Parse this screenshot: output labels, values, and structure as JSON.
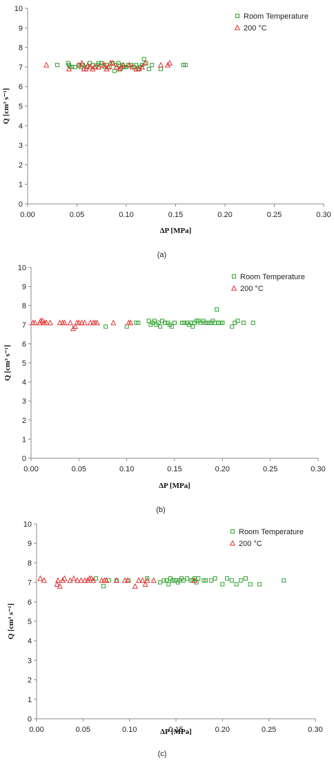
{
  "chart_data": [
    {
      "type": "scatter",
      "caption": "(a)",
      "xlabel": "ΔP [MPa]",
      "ylabel": "Q [cm³ s⁻¹]",
      "xlim": [
        0,
        0.3
      ],
      "ylim": [
        0,
        10
      ],
      "x_ticks": [
        "0.00",
        "0.05",
        "0.10",
        "0.15",
        "0.20",
        "0.25",
        "0.30"
      ],
      "y_ticks": [
        "0",
        "1",
        "2",
        "3",
        "4",
        "5",
        "6",
        "7",
        "8",
        "9",
        "10"
      ],
      "grid": false,
      "legend_position": "top-right",
      "series": [
        {
          "name": "Room Temperature",
          "marker": "square",
          "color": "#2e9e2e",
          "points": [
            [
              0.03,
              7.1
            ],
            [
              0.041,
              7.2
            ],
            [
              0.042,
              7.1
            ],
            [
              0.043,
              7.0
            ],
            [
              0.045,
              7.0
            ],
            [
              0.048,
              7.0
            ],
            [
              0.052,
              7.1
            ],
            [
              0.054,
              7.0
            ],
            [
              0.056,
              7.1
            ],
            [
              0.06,
              7.0
            ],
            [
              0.063,
              7.2
            ],
            [
              0.066,
              7.1
            ],
            [
              0.069,
              7.0
            ],
            [
              0.071,
              7.1
            ],
            [
              0.072,
              7.2
            ],
            [
              0.075,
              7.2
            ],
            [
              0.078,
              7.0
            ],
            [
              0.08,
              7.1
            ],
            [
              0.083,
              7.0
            ],
            [
              0.086,
              7.2
            ],
            [
              0.088,
              6.8
            ],
            [
              0.09,
              7.1
            ],
            [
              0.092,
              7.2
            ],
            [
              0.094,
              6.9
            ],
            [
              0.096,
              7.1
            ],
            [
              0.098,
              7.0
            ],
            [
              0.1,
              7.0
            ],
            [
              0.102,
              7.1
            ],
            [
              0.105,
              7.1
            ],
            [
              0.108,
              7.0
            ],
            [
              0.11,
              7.1
            ],
            [
              0.112,
              6.9
            ],
            [
              0.114,
              7.0
            ],
            [
              0.116,
              7.1
            ],
            [
              0.118,
              7.4
            ],
            [
              0.12,
              7.2
            ],
            [
              0.123,
              6.9
            ],
            [
              0.126,
              7.1
            ],
            [
              0.135,
              6.9
            ],
            [
              0.158,
              7.1
            ],
            [
              0.16,
              7.1
            ]
          ]
        },
        {
          "name": "200 °C",
          "marker": "triangle",
          "color": "#e03030",
          "points": [
            [
              0.019,
              7.1
            ],
            [
              0.042,
              6.9
            ],
            [
              0.052,
              7.1
            ],
            [
              0.055,
              7.2
            ],
            [
              0.057,
              6.9
            ],
            [
              0.059,
              6.9
            ],
            [
              0.061,
              7.1
            ],
            [
              0.063,
              7.0
            ],
            [
              0.066,
              6.9
            ],
            [
              0.068,
              7.0
            ],
            [
              0.072,
              7.0
            ],
            [
              0.076,
              7.1
            ],
            [
              0.078,
              7.1
            ],
            [
              0.08,
              6.9
            ],
            [
              0.082,
              7.0
            ],
            [
              0.084,
              7.2
            ],
            [
              0.086,
              7.2
            ],
            [
              0.09,
              7.0
            ],
            [
              0.093,
              6.9
            ],
            [
              0.095,
              7.0
            ],
            [
              0.097,
              7.1
            ],
            [
              0.103,
              7.1
            ],
            [
              0.106,
              7.0
            ],
            [
              0.11,
              6.9
            ],
            [
              0.113,
              6.9
            ],
            [
              0.116,
              7.0
            ],
            [
              0.119,
              7.2
            ],
            [
              0.135,
              7.1
            ],
            [
              0.142,
              7.1
            ],
            [
              0.144,
              7.2
            ]
          ]
        }
      ]
    },
    {
      "type": "scatter",
      "caption": "(b)",
      "xlabel": "ΔP [MPa]",
      "ylabel": "Q [cm³ s⁻¹]",
      "xlim": [
        0,
        0.3
      ],
      "ylim": [
        0,
        10
      ],
      "x_ticks": [
        "0.00",
        "0.05",
        "0.10",
        "0.15",
        "0.20",
        "0.25",
        "0.30"
      ],
      "y_ticks": [
        "0",
        "1",
        "2",
        "3",
        "4",
        "5",
        "6",
        "7",
        "8",
        "9",
        "10"
      ],
      "grid": false,
      "legend_position": "top-right",
      "series": [
        {
          "name": "Room Temperature",
          "marker": "square",
          "color": "#2e9e2e",
          "points": [
            [
              0.078,
              6.9
            ],
            [
              0.1,
              6.9
            ],
            [
              0.11,
              7.1
            ],
            [
              0.112,
              7.1
            ],
            [
              0.123,
              7.2
            ],
            [
              0.125,
              7.0
            ],
            [
              0.127,
              7.1
            ],
            [
              0.129,
              7.2
            ],
            [
              0.131,
              7.0
            ],
            [
              0.133,
              7.1
            ],
            [
              0.135,
              6.9
            ],
            [
              0.137,
              7.2
            ],
            [
              0.14,
              7.1
            ],
            [
              0.143,
              7.1
            ],
            [
              0.145,
              7.0
            ],
            [
              0.147,
              6.9
            ],
            [
              0.15,
              7.1
            ],
            [
              0.158,
              7.1
            ],
            [
              0.16,
              7.1
            ],
            [
              0.163,
              7.1
            ],
            [
              0.165,
              7.0
            ],
            [
              0.167,
              7.1
            ],
            [
              0.169,
              6.9
            ],
            [
              0.171,
              7.1
            ],
            [
              0.173,
              7.2
            ],
            [
              0.175,
              7.2
            ],
            [
              0.177,
              7.1
            ],
            [
              0.18,
              7.2
            ],
            [
              0.182,
              7.1
            ],
            [
              0.184,
              7.1
            ],
            [
              0.186,
              7.1
            ],
            [
              0.188,
              7.1
            ],
            [
              0.19,
              7.2
            ],
            [
              0.192,
              7.1
            ],
            [
              0.194,
              7.8
            ],
            [
              0.196,
              7.1
            ],
            [
              0.198,
              7.1
            ],
            [
              0.2,
              7.1
            ],
            [
              0.21,
              6.9
            ],
            [
              0.213,
              7.1
            ],
            [
              0.216,
              7.2
            ],
            [
              0.222,
              7.1
            ],
            [
              0.232,
              7.1
            ]
          ]
        },
        {
          "name": "200 °C",
          "marker": "triangle",
          "color": "#e03030",
          "points": [
            [
              0.002,
              7.1
            ],
            [
              0.004,
              7.1
            ],
            [
              0.009,
              7.1
            ],
            [
              0.01,
              7.2
            ],
            [
              0.012,
              7.2
            ],
            [
              0.014,
              7.1
            ],
            [
              0.016,
              7.1
            ],
            [
              0.02,
              7.1
            ],
            [
              0.03,
              7.1
            ],
            [
              0.033,
              7.1
            ],
            [
              0.035,
              7.1
            ],
            [
              0.041,
              7.1
            ],
            [
              0.044,
              6.8
            ],
            [
              0.046,
              6.9
            ],
            [
              0.048,
              7.1
            ],
            [
              0.05,
              7.1
            ],
            [
              0.053,
              7.1
            ],
            [
              0.056,
              7.1
            ],
            [
              0.062,
              7.1
            ],
            [
              0.065,
              7.1
            ],
            [
              0.067,
              7.1
            ],
            [
              0.069,
              7.1
            ],
            [
              0.086,
              7.1
            ],
            [
              0.102,
              7.1
            ],
            [
              0.104,
              7.1
            ]
          ]
        }
      ]
    },
    {
      "type": "scatter",
      "caption": "(c)",
      "xlabel": "ΔP [MPa]",
      "ylabel": "Q [cm³ s⁻¹]",
      "xlim": [
        0,
        0.3
      ],
      "ylim": [
        0,
        10
      ],
      "x_ticks": [
        "0.00",
        "0.05",
        "0.10",
        "0.15",
        "0.20",
        "0.25",
        "0.30"
      ],
      "y_ticks": [
        "0",
        "1",
        "2",
        "3",
        "4",
        "5",
        "6",
        "7",
        "8",
        "9",
        "10"
      ],
      "grid": false,
      "legend_position": "top-right",
      "series": [
        {
          "name": "Room Temperature",
          "marker": "square",
          "color": "#2e9e2e",
          "points": [
            [
              0.064,
              7.2
            ],
            [
              0.072,
              6.8
            ],
            [
              0.078,
              7.1
            ],
            [
              0.086,
              7.1
            ],
            [
              0.099,
              7.1
            ],
            [
              0.119,
              7.2
            ],
            [
              0.133,
              7.0
            ],
            [
              0.137,
              7.1
            ],
            [
              0.14,
              7.1
            ],
            [
              0.142,
              6.9
            ],
            [
              0.144,
              7.2
            ],
            [
              0.146,
              7.1
            ],
            [
              0.148,
              7.1
            ],
            [
              0.15,
              7.1
            ],
            [
              0.152,
              7.0
            ],
            [
              0.154,
              7.1
            ],
            [
              0.156,
              7.2
            ],
            [
              0.158,
              7.1
            ],
            [
              0.162,
              7.2
            ],
            [
              0.166,
              7.1
            ],
            [
              0.168,
              7.1
            ],
            [
              0.17,
              7.2
            ],
            [
              0.172,
              7.0
            ],
            [
              0.174,
              7.2
            ],
            [
              0.18,
              7.1
            ],
            [
              0.182,
              7.1
            ],
            [
              0.188,
              7.1
            ],
            [
              0.192,
              7.2
            ],
            [
              0.2,
              6.9
            ],
            [
              0.205,
              7.2
            ],
            [
              0.21,
              7.1
            ],
            [
              0.215,
              6.9
            ],
            [
              0.22,
              7.1
            ],
            [
              0.225,
              7.2
            ],
            [
              0.23,
              6.9
            ],
            [
              0.24,
              6.9
            ],
            [
              0.266,
              7.1
            ]
          ]
        },
        {
          "name": "200 °C",
          "marker": "triangle",
          "color": "#e03030",
          "points": [
            [
              0.004,
              7.2
            ],
            [
              0.008,
              7.1
            ],
            [
              0.022,
              6.9
            ],
            [
              0.023,
              7.1
            ],
            [
              0.025,
              6.8
            ],
            [
              0.028,
              7.1
            ],
            [
              0.03,
              7.2
            ],
            [
              0.036,
              7.1
            ],
            [
              0.04,
              7.2
            ],
            [
              0.044,
              7.1
            ],
            [
              0.048,
              7.1
            ],
            [
              0.052,
              7.1
            ],
            [
              0.055,
              7.1
            ],
            [
              0.057,
              7.2
            ],
            [
              0.059,
              7.2
            ],
            [
              0.061,
              7.1
            ],
            [
              0.07,
              7.1
            ],
            [
              0.073,
              7.1
            ],
            [
              0.075,
              7.1
            ],
            [
              0.086,
              7.1
            ],
            [
              0.095,
              7.1
            ],
            [
              0.098,
              7.1
            ],
            [
              0.106,
              6.8
            ],
            [
              0.11,
              7.1
            ],
            [
              0.114,
              7.1
            ],
            [
              0.117,
              6.9
            ],
            [
              0.119,
              7.1
            ],
            [
              0.126,
              7.1
            ],
            [
              0.17,
              7.1
            ]
          ]
        }
      ]
    }
  ]
}
